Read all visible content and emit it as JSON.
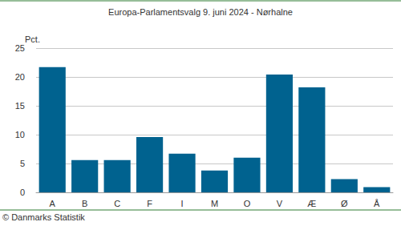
{
  "chart_data": {
    "type": "bar",
    "title": "Europa-Parlamentsvalg 9. juni 2024 - Nørhalne",
    "ylabel": "Pct.",
    "source": "© Danmarks Statistik",
    "categories": [
      "A",
      "B",
      "C",
      "F",
      "I",
      "M",
      "O",
      "V",
      "Æ",
      "Ø",
      "Å"
    ],
    "values": [
      21.7,
      5.6,
      5.6,
      9.6,
      6.7,
      3.8,
      6.0,
      20.4,
      18.2,
      2.3,
      0.9
    ],
    "color": "#00628f",
    "ylim": [
      0,
      25
    ],
    "yticks": [
      0,
      5,
      10,
      15,
      20,
      25
    ],
    "grid": true
  }
}
